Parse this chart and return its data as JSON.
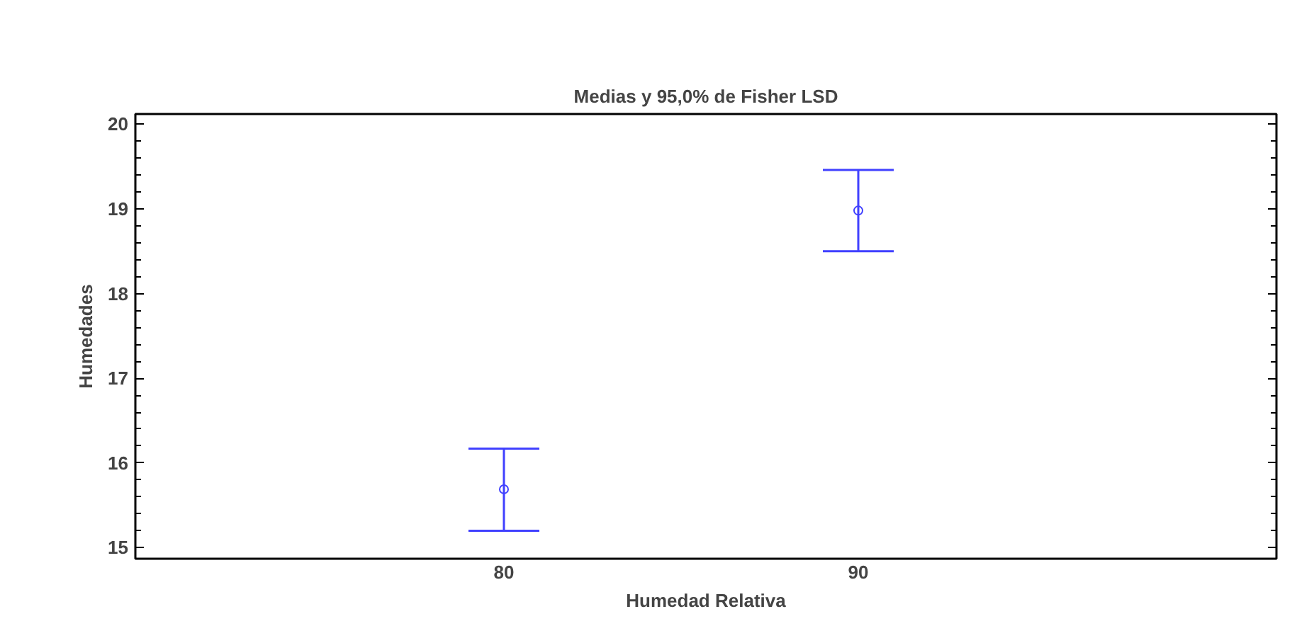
{
  "chart_data": {
    "type": "scatter",
    "title": "Medias y 95,0% de Fisher LSD",
    "xlabel": "Humedad Relativa",
    "ylabel": "Humedades",
    "categories": [
      "80",
      "90"
    ],
    "values": [
      15.69,
      18.98
    ],
    "errors": [
      [
        15.2,
        16.17
      ],
      [
        18.5,
        19.46
      ]
    ],
    "color": "#4040ff",
    "marker": "circle",
    "ylim": [
      14.87,
      20.12
    ],
    "yticks": [
      15,
      16,
      17,
      18,
      19,
      20
    ],
    "grid": false
  }
}
